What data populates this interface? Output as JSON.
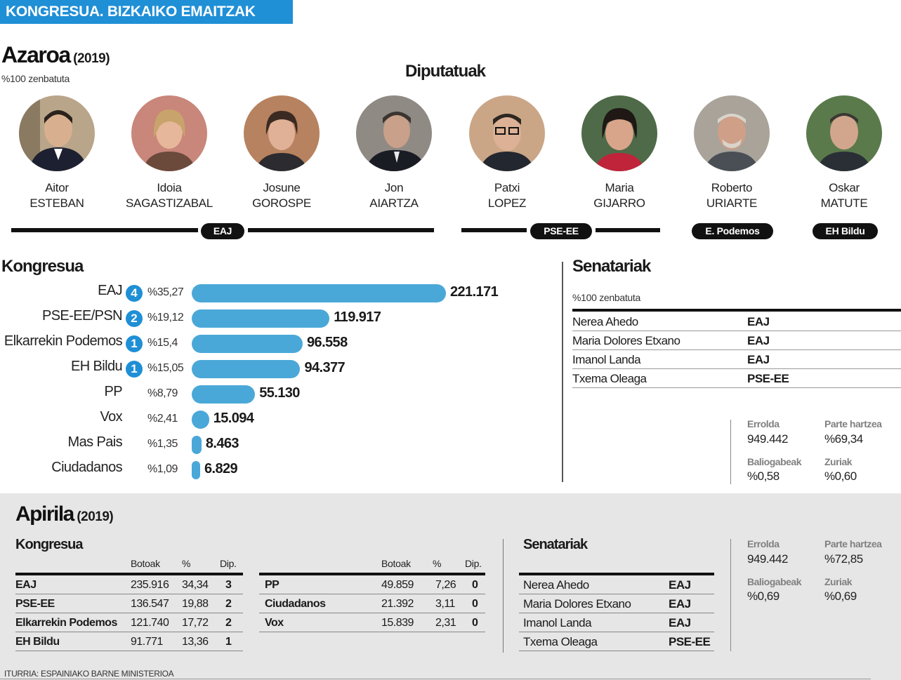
{
  "header": {
    "title": "KONGRESUA. BIZKAIKO EMAITZAK"
  },
  "azaroa": {
    "title": "Azaroa",
    "year": "(2019)",
    "counted": "%100 zenbatuta"
  },
  "diputatuak": {
    "title": "Diputatuak",
    "people": [
      {
        "first": "Aitor",
        "last": "ESTEBAN",
        "icon": "portrait-photo"
      },
      {
        "first": "Idoia",
        "last": "SAGASTIZABAL",
        "icon": "portrait-photo"
      },
      {
        "first": "Josune",
        "last": "GOROSPE",
        "icon": "portrait-photo"
      },
      {
        "first": "Jon",
        "last": "AIARTZA",
        "icon": "portrait-photo"
      },
      {
        "first": "Patxi",
        "last": "LOPEZ",
        "icon": "portrait-photo"
      },
      {
        "first": "Maria",
        "last": "GIJARRO",
        "icon": "portrait-photo"
      },
      {
        "first": "Roberto",
        "last": "URIARTE",
        "icon": "portrait-photo"
      },
      {
        "first": "Oskar",
        "last": "MATUTE",
        "icon": "portrait-photo"
      }
    ],
    "groups": [
      "EAJ",
      "PSE-EE",
      "E. Podemos",
      "EH Bildu"
    ]
  },
  "chart_data": {
    "type": "bar",
    "title": "Kongresua",
    "orientation": "horizontal",
    "categories": [
      "EAJ",
      "PSE-EE/PSN",
      "Elkarrekin Podemos",
      "EH Bildu",
      "PP",
      "Vox",
      "Mas Pais",
      "Ciudadanos"
    ],
    "values": [
      221171,
      119917,
      96558,
      94377,
      55130,
      15094,
      8463,
      6829
    ],
    "value_labels": [
      "221.171",
      "119.917",
      "96.558",
      "94.377",
      "55.130",
      "15.094",
      "8.463",
      "6.829"
    ],
    "percents": [
      "%35,27",
      "%19,12",
      "%15,4",
      "%15,05",
      "%8,79",
      "%2,41",
      "%1,35",
      "%1,09"
    ],
    "seats": [
      "4",
      "2",
      "1",
      "1",
      "",
      "",
      "",
      ""
    ],
    "color": "#4aa8d8",
    "seat_color": "#1f8fd6"
  },
  "senatariak_nov": {
    "title": "Senatariak",
    "counted": "%100 zenbatuta",
    "rows": [
      {
        "name": "Nerea Ahedo",
        "party": "EAJ"
      },
      {
        "name": "Maria Dolores Etxano",
        "party": "EAJ"
      },
      {
        "name": "Imanol Landa",
        "party": "EAJ"
      },
      {
        "name": "Txema Oleaga",
        "party": "PSE-EE"
      }
    ]
  },
  "stats_nov": {
    "errolda_label": "Errolda",
    "errolda": "949.442",
    "parte_label": "Parte hartzea",
    "parte": "%69,34",
    "balio_label": "Baliogabeak",
    "balio": "%0,58",
    "zuriak_label": "Zuriak",
    "zuriak": "%0,60"
  },
  "apirila": {
    "title": "Apirila",
    "year": "(2019)",
    "kongresua_title": "Kongresua",
    "headers": {
      "votes": "Botoak",
      "pct": "%",
      "dip": "Dip."
    },
    "left_rows": [
      {
        "party": "EAJ",
        "votes": "235.916",
        "pct": "34,34",
        "dip": "3"
      },
      {
        "party": "PSE-EE",
        "votes": "136.547",
        "pct": "19,88",
        "dip": "2"
      },
      {
        "party": "Elkarrekin Podemos",
        "votes": "121.740",
        "pct": "17,72",
        "dip": "2"
      },
      {
        "party": "EH Bildu",
        "votes": "91.771",
        "pct": "13,36",
        "dip": "1"
      }
    ],
    "right_rows": [
      {
        "party": "PP",
        "votes": "49.859",
        "pct": "7,26",
        "dip": "0"
      },
      {
        "party": "Ciudadanos",
        "votes": "21.392",
        "pct": "3,11",
        "dip": "0"
      },
      {
        "party": "Vox",
        "votes": "15.839",
        "pct": "2,31",
        "dip": "0"
      }
    ],
    "senatariak_title": "Senatariak",
    "senatariak": [
      {
        "name": "Nerea Ahedo",
        "party": "EAJ"
      },
      {
        "name": "Maria Dolores Etxano",
        "party": "EAJ"
      },
      {
        "name": "Imanol Landa",
        "party": "EAJ"
      },
      {
        "name": "Txema Oleaga",
        "party": "PSE-EE"
      }
    ],
    "stats": {
      "errolda_label": "Errolda",
      "errolda": "949.442",
      "parte_label": "Parte hartzea",
      "parte": "%72,85",
      "balio_label": "Baliogabeak",
      "balio": "%0,69",
      "zuriak_label": "Zuriak",
      "zuriak": "%0,69"
    }
  },
  "source": "ITURRIA: ESPAINIAKO BARNE MINISTERIOA"
}
